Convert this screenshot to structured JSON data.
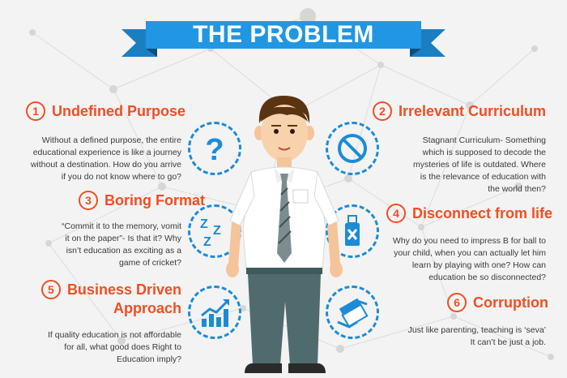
{
  "title": "THE PROBLEM",
  "colors": {
    "accent": "#f04e23",
    "banner": "#2196e3",
    "icon": "#1c8bd8"
  },
  "items": [
    {
      "number": "1",
      "heading": "Undefined Purpose",
      "icon": "question-mark-icon",
      "lines": [
        "Without a defined purpose, the entire",
        "educational experience is like a journey",
        "without a destination. How do you arrive",
        "if you do not know where to go?"
      ]
    },
    {
      "number": "2",
      "heading": "Irrelevant Curriculum",
      "icon": "prohibited-icon",
      "lines": [
        "Stagnant Curriculum- Something",
        "which is supposed to decode the",
        "mysteries of life is outdated. Where",
        "is the relevance of education with",
        "the world then?"
      ]
    },
    {
      "number": "3",
      "heading": "Boring Format",
      "icon": "sleep-zzz-icon",
      "lines": [
        "“Commit it to the memory, vomit",
        "it on the paper”- Is that it? Why",
        "isn’t education as exciting as a",
        "game of cricket?"
      ]
    },
    {
      "number": "4",
      "heading": "Disconnect from life",
      "icon": "usb-disconnect-icon",
      "lines": [
        "Why do you need to impress B for ball to",
        "your child, when you can actually let him",
        "learn by playing with one? How can",
        "education be so disconnected?"
      ]
    },
    {
      "number": "5",
      "heading_line1": "Business Driven",
      "heading_line2": "Approach",
      "icon": "rising-chart-icon",
      "lines": [
        "If quality education is not affordable",
        "for all, what good does Right to",
        "Education imply?"
      ]
    },
    {
      "number": "6",
      "heading": "Corruption",
      "icon": "bribe-money-icon",
      "lines": [
        "Just like parenting, teaching is ‘seva’",
        "It can’t be just a job."
      ]
    }
  ]
}
